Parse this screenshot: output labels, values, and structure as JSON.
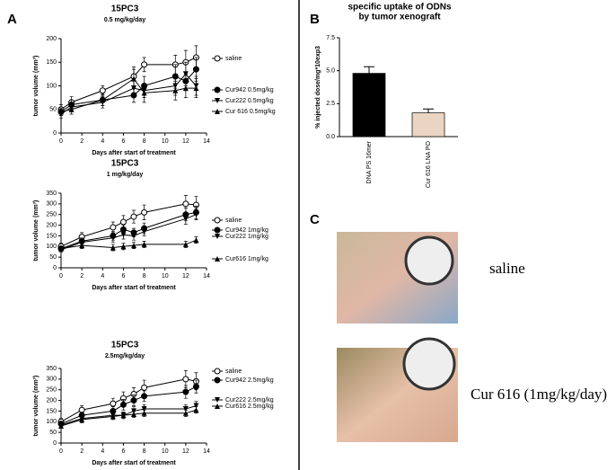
{
  "panel_labels": [
    "A",
    "B",
    "C"
  ],
  "chart_data": [
    {
      "type": "line",
      "title": "15PC3",
      "subtitle": "0.5 mg/kg/day",
      "x_label": "Days after start of treatment",
      "y_label": "tumor volume (mm³)",
      "x": [
        0,
        1,
        4,
        7,
        8,
        11,
        12,
        13
      ],
      "xlim": [
        0,
        14
      ],
      "xticks": [
        0,
        2,
        4,
        6,
        8,
        10,
        12,
        14
      ],
      "ylim": [
        0,
        200
      ],
      "yticks": [
        0,
        50,
        100,
        150,
        200
      ],
      "series": [
        {
          "name": "saline",
          "color": "#000000",
          "marker": "open-circle",
          "values": [
            50,
            65,
            90,
            120,
            145,
            145,
            150,
            160
          ],
          "errors": [
            10,
            12,
            10,
            20,
            15,
            20,
            25,
            25
          ]
        },
        {
          "name": "Cur942 0.5mg/kg",
          "color": "#000000",
          "marker": "circle",
          "values": [
            45,
            60,
            70,
            80,
            100,
            120,
            110,
            135
          ],
          "errors": [
            8,
            10,
            12,
            15,
            20,
            25,
            20,
            25
          ]
        },
        {
          "name": "Cur222 0.5mg/kg",
          "color": "#000000",
          "marker": "triangle-down",
          "values": [
            40,
            55,
            65,
            95,
            90,
            100,
            125,
            100
          ],
          "errors": [
            8,
            10,
            12,
            20,
            15,
            20,
            25,
            20
          ]
        },
        {
          "name": "Cur 616 0.5mg/kg",
          "color": "#000000",
          "marker": "triangle-up",
          "values": [
            45,
            50,
            70,
            115,
            85,
            90,
            95,
            95
          ],
          "errors": [
            8,
            10,
            12,
            20,
            20,
            20,
            20,
            20
          ]
        }
      ]
    },
    {
      "type": "line",
      "title": "15PC3",
      "subtitle": "1 mg/kg/day",
      "x_label": "Days after start of treatment",
      "y_label": "tumor volume (mm³)",
      "x": [
        0,
        2,
        5,
        6,
        7,
        8,
        12,
        13
      ],
      "xlim": [
        0,
        14
      ],
      "xticks": [
        0,
        2,
        4,
        6,
        8,
        10,
        12,
        14
      ],
      "ylim": [
        0,
        350
      ],
      "yticks": [
        0,
        50,
        100,
        150,
        200,
        250,
        300,
        350
      ],
      "series": [
        {
          "name": "saline",
          "color": "#000000",
          "marker": "open-circle",
          "values": [
            100,
            145,
            190,
            215,
            240,
            260,
            300,
            295
          ],
          "errors": [
            15,
            20,
            25,
            30,
            30,
            35,
            40,
            40
          ]
        },
        {
          "name": "Cur942 1mg/kg",
          "color": "#000000",
          "marker": "circle",
          "values": [
            90,
            125,
            150,
            180,
            165,
            185,
            250,
            260
          ],
          "errors": [
            10,
            15,
            20,
            20,
            20,
            25,
            30,
            30
          ]
        },
        {
          "name": "Cur222 1mg/kg",
          "color": "#000000",
          "marker": "triangle-down",
          "values": [
            85,
            120,
            140,
            155,
            150,
            170,
            230,
            250
          ],
          "errors": [
            10,
            15,
            20,
            20,
            20,
            20,
            25,
            25
          ]
        },
        {
          "name": "Cur616 1mg/kg",
          "color": "#000000",
          "marker": "triangle-up",
          "values": [
            90,
            105,
            95,
            100,
            105,
            110,
            110,
            130
          ],
          "errors": [
            10,
            15,
            15,
            15,
            15,
            15,
            15,
            15
          ]
        }
      ]
    },
    {
      "type": "line",
      "title": "15PC3",
      "subtitle": "2.5mg/kg/day",
      "x_label": "Days after start of treatment",
      "y_label": "tumor volume (mm³)",
      "x": [
        0,
        2,
        5,
        6,
        7,
        8,
        12,
        13
      ],
      "xlim": [
        0,
        14
      ],
      "xticks": [
        0,
        2,
        4,
        6,
        8,
        10,
        12,
        14
      ],
      "ylim": [
        0,
        350
      ],
      "yticks": [
        0,
        50,
        100,
        150,
        200,
        250,
        300,
        350
      ],
      "series": [
        {
          "name": "saline",
          "color": "#000000",
          "marker": "open-circle",
          "values": [
            100,
            155,
            185,
            210,
            230,
            260,
            300,
            290
          ],
          "errors": [
            15,
            20,
            25,
            30,
            30,
            35,
            40,
            40
          ]
        },
        {
          "name": "Cur942 2.5mg/kg",
          "color": "#000000",
          "marker": "circle",
          "values": [
            90,
            130,
            150,
            180,
            200,
            220,
            240,
            265
          ],
          "errors": [
            10,
            15,
            20,
            25,
            25,
            25,
            30,
            30
          ]
        },
        {
          "name": "Cur222 2.5mg/kg",
          "color": "#000000",
          "marker": "triangle-down",
          "values": [
            85,
            115,
            130,
            130,
            150,
            160,
            160,
            175
          ],
          "errors": [
            10,
            15,
            15,
            15,
            20,
            20,
            20,
            20
          ]
        },
        {
          "name": "Cur616 2.5mg/kg",
          "color": "#000000",
          "marker": "triangle-up",
          "values": [
            80,
            110,
            125,
            130,
            135,
            140,
            140,
            155
          ],
          "errors": [
            10,
            15,
            15,
            15,
            15,
            15,
            15,
            15
          ]
        }
      ]
    },
    {
      "type": "bar",
      "title": "specific uptake of ODNs",
      "subtitle": "by tumor xenograft",
      "y_label": "% injected dose/mg*10exp3",
      "categories": [
        "DNA PS 16mer",
        "Cur 616 LNA PO"
      ],
      "values": [
        4.8,
        1.8
      ],
      "errors": [
        0.5,
        0.3
      ],
      "colors": [
        "#000000",
        "#ead5c2"
      ],
      "ylim": [
        0,
        7.5
      ],
      "yticks": [
        {
          "value": 0,
          "label": "0.0"
        },
        2.5,
        {
          "value": 5,
          "label": "5.0"
        },
        7.5
      ]
    }
  ],
  "photo_captions": [
    "saline",
    "Cur 616 (1mg/kg/day)"
  ]
}
